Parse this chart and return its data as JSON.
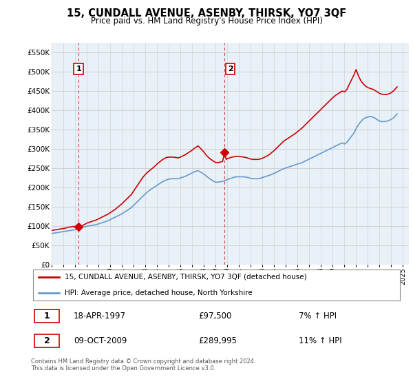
{
  "title": "15, CUNDALL AVENUE, ASENBY, THIRSK, YO7 3QF",
  "subtitle": "Price paid vs. HM Land Registry's House Price Index (HPI)",
  "ylim": [
    0,
    575000
  ],
  "yticks": [
    0,
    50000,
    100000,
    150000,
    200000,
    250000,
    300000,
    350000,
    400000,
    450000,
    500000,
    550000
  ],
  "ytick_labels": [
    "£0",
    "£50K",
    "£100K",
    "£150K",
    "£200K",
    "£250K",
    "£300K",
    "£350K",
    "£400K",
    "£450K",
    "£500K",
    "£550K"
  ],
  "sale1_date": 1997.3,
  "sale1_price": 97500,
  "sale1_label": "1",
  "sale1_text": "18-APR-1997",
  "sale1_amount": "£97,500",
  "sale1_hpi": "7% ↑ HPI",
  "sale2_date": 2009.77,
  "sale2_price": 289995,
  "sale2_label": "2",
  "sale2_text": "09-OCT-2009",
  "sale2_amount": "£289,995",
  "sale2_hpi": "11% ↑ HPI",
  "line_color_property": "#cc0000",
  "line_color_hpi": "#6699cc",
  "vline_color": "#cc4444",
  "grid_color": "#cccccc",
  "chart_bg": "#e8f0f8",
  "background_color": "#ffffff",
  "legend_label_property": "15, CUNDALL AVENUE, ASENBY, THIRSK, YO7 3QF (detached house)",
  "legend_label_hpi": "HPI: Average price, detached house, North Yorkshire",
  "footer": "Contains HM Land Registry data © Crown copyright and database right 2024.\nThis data is licensed under the Open Government Licence v3.0.",
  "xmin": 1995,
  "xmax": 2025.5,
  "hpi_years": [
    1995.0,
    1995.1,
    1995.2,
    1995.3,
    1995.4,
    1995.5,
    1995.6,
    1995.7,
    1995.8,
    1995.9,
    1996.0,
    1996.1,
    1996.2,
    1996.3,
    1996.4,
    1996.5,
    1996.6,
    1996.7,
    1996.8,
    1996.9,
    1997.0,
    1997.1,
    1997.2,
    1997.3,
    1997.4,
    1997.5,
    1997.6,
    1997.7,
    1997.8,
    1997.9,
    1998.0,
    1998.2,
    1998.4,
    1998.6,
    1998.8,
    1999.0,
    1999.2,
    1999.4,
    1999.6,
    1999.8,
    2000.0,
    2000.2,
    2000.4,
    2000.6,
    2000.8,
    2001.0,
    2001.2,
    2001.4,
    2001.6,
    2001.8,
    2002.0,
    2002.2,
    2002.4,
    2002.6,
    2002.8,
    2003.0,
    2003.2,
    2003.4,
    2003.6,
    2003.8,
    2004.0,
    2004.2,
    2004.4,
    2004.6,
    2004.8,
    2005.0,
    2005.2,
    2005.4,
    2005.6,
    2005.8,
    2006.0,
    2006.2,
    2006.4,
    2006.6,
    2006.8,
    2007.0,
    2007.2,
    2007.4,
    2007.5,
    2007.6,
    2007.8,
    2008.0,
    2008.2,
    2008.4,
    2008.6,
    2008.8,
    2009.0,
    2009.2,
    2009.4,
    2009.6,
    2009.8,
    2010.0,
    2010.2,
    2010.4,
    2010.6,
    2010.8,
    2011.0,
    2011.2,
    2011.4,
    2011.6,
    2011.8,
    2012.0,
    2012.2,
    2012.4,
    2012.6,
    2012.8,
    2013.0,
    2013.2,
    2013.4,
    2013.6,
    2013.8,
    2014.0,
    2014.2,
    2014.4,
    2014.6,
    2014.8,
    2015.0,
    2015.2,
    2015.4,
    2015.6,
    2015.8,
    2016.0,
    2016.2,
    2016.4,
    2016.6,
    2016.8,
    2017.0,
    2017.2,
    2017.4,
    2017.6,
    2017.8,
    2018.0,
    2018.2,
    2018.4,
    2018.6,
    2018.8,
    2019.0,
    2019.2,
    2019.4,
    2019.6,
    2019.8,
    2020.0,
    2020.2,
    2020.5,
    2020.8,
    2021.0,
    2021.2,
    2021.4,
    2021.6,
    2021.8,
    2022.0,
    2022.2,
    2022.4,
    2022.6,
    2022.8,
    2023.0,
    2023.2,
    2023.4,
    2023.6,
    2023.8,
    2024.0,
    2024.2,
    2024.5
  ],
  "hpi_values": [
    80000,
    80500,
    81000,
    81500,
    82000,
    82500,
    83000,
    83500,
    84000,
    84500,
    85000,
    85500,
    86000,
    86500,
    87000,
    87500,
    88000,
    88500,
    89000,
    89500,
    90000,
    91000,
    92000,
    93000,
    94000,
    95000,
    96000,
    97000,
    97500,
    98000,
    99000,
    100000,
    101000,
    102000,
    103000,
    105000,
    107000,
    109000,
    111000,
    113000,
    116000,
    119000,
    122000,
    125000,
    128000,
    131000,
    135000,
    139000,
    143000,
    147000,
    153000,
    159000,
    165000,
    171000,
    177000,
    183000,
    188000,
    193000,
    197000,
    201000,
    205000,
    209000,
    213000,
    216000,
    219000,
    221000,
    222000,
    222000,
    222000,
    222000,
    224000,
    226000,
    228000,
    231000,
    234000,
    237000,
    240000,
    242000,
    243000,
    241000,
    238000,
    234000,
    229000,
    224000,
    220000,
    216000,
    213000,
    213000,
    214000,
    215000,
    217000,
    220000,
    222000,
    224000,
    226000,
    227000,
    227000,
    227000,
    227000,
    226000,
    225000,
    223000,
    222000,
    222000,
    222000,
    223000,
    225000,
    227000,
    229000,
    231000,
    233000,
    236000,
    239000,
    242000,
    245000,
    248000,
    250000,
    252000,
    254000,
    256000,
    258000,
    260000,
    262000,
    264000,
    267000,
    270000,
    273000,
    276000,
    279000,
    282000,
    285000,
    288000,
    291000,
    294000,
    297000,
    300000,
    303000,
    306000,
    309000,
    312000,
    315000,
    312000,
    316000,
    328000,
    340000,
    352000,
    362000,
    370000,
    376000,
    380000,
    382000,
    383000,
    382000,
    379000,
    375000,
    371000,
    370000,
    370000,
    371000,
    373000,
    376000,
    380000,
    390000
  ],
  "prop_years": [
    1995.0,
    1995.1,
    1995.2,
    1995.3,
    1995.4,
    1995.5,
    1995.6,
    1995.7,
    1995.8,
    1995.9,
    1996.0,
    1996.1,
    1996.2,
    1996.3,
    1996.4,
    1996.5,
    1996.6,
    1996.7,
    1996.8,
    1996.9,
    1997.0,
    1997.1,
    1997.2,
    1997.3,
    1997.4,
    1997.5,
    1997.6,
    1997.7,
    1997.8,
    1997.9,
    1998.0,
    1998.2,
    1998.4,
    1998.6,
    1998.8,
    1999.0,
    1999.2,
    1999.4,
    1999.6,
    1999.8,
    2000.0,
    2000.2,
    2000.4,
    2000.6,
    2000.8,
    2001.0,
    2001.2,
    2001.4,
    2001.6,
    2001.8,
    2002.0,
    2002.2,
    2002.4,
    2002.6,
    2002.8,
    2003.0,
    2003.2,
    2003.4,
    2003.6,
    2003.8,
    2004.0,
    2004.2,
    2004.4,
    2004.6,
    2004.8,
    2005.0,
    2005.2,
    2005.4,
    2005.6,
    2005.8,
    2006.0,
    2006.2,
    2006.4,
    2006.6,
    2006.8,
    2007.0,
    2007.2,
    2007.4,
    2007.5,
    2007.6,
    2007.8,
    2008.0,
    2008.2,
    2008.4,
    2008.6,
    2008.8,
    2009.0,
    2009.2,
    2009.4,
    2009.6,
    2009.77,
    2009.9,
    2010.0,
    2010.2,
    2010.4,
    2010.6,
    2010.8,
    2011.0,
    2011.2,
    2011.4,
    2011.6,
    2011.8,
    2012.0,
    2012.2,
    2012.4,
    2012.6,
    2012.8,
    2013.0,
    2013.2,
    2013.4,
    2013.6,
    2013.8,
    2014.0,
    2014.2,
    2014.4,
    2014.6,
    2014.8,
    2015.0,
    2015.2,
    2015.4,
    2015.6,
    2015.8,
    2016.0,
    2016.2,
    2016.4,
    2016.6,
    2016.8,
    2017.0,
    2017.2,
    2017.4,
    2017.6,
    2017.8,
    2018.0,
    2018.2,
    2018.4,
    2018.6,
    2018.8,
    2019.0,
    2019.2,
    2019.4,
    2019.6,
    2019.8,
    2020.0,
    2020.2,
    2020.5,
    2020.8,
    2021.0,
    2021.2,
    2021.4,
    2021.6,
    2021.8,
    2022.0,
    2022.2,
    2022.4,
    2022.6,
    2022.8,
    2023.0,
    2023.2,
    2023.4,
    2023.6,
    2023.8,
    2024.0,
    2024.2,
    2024.5
  ],
  "prop_values": [
    88000,
    88500,
    89000,
    89500,
    90000,
    90500,
    91000,
    91500,
    92000,
    92500,
    93000,
    93500,
    94000,
    95000,
    96000,
    96500,
    97000,
    97500,
    97800,
    98000,
    98500,
    98700,
    98800,
    97500,
    98000,
    99000,
    100500,
    102000,
    103500,
    105000,
    107000,
    109000,
    111000,
    113000,
    115000,
    118000,
    121000,
    124000,
    127000,
    130000,
    134000,
    138000,
    142000,
    147000,
    152000,
    157000,
    163000,
    169000,
    175000,
    181000,
    190000,
    199000,
    208000,
    217000,
    226000,
    233000,
    239000,
    244000,
    249000,
    254000,
    260000,
    265000,
    270000,
    274000,
    277000,
    278000,
    278000,
    278000,
    277000,
    276000,
    278000,
    281000,
    284000,
    288000,
    292000,
    296000,
    301000,
    305000,
    307000,
    304000,
    298000,
    291000,
    283000,
    277000,
    272000,
    268000,
    264000,
    264000,
    265000,
    267000,
    289995,
    272000,
    274000,
    276000,
    278000,
    279000,
    280000,
    280000,
    279000,
    278000,
    277000,
    275000,
    273000,
    272000,
    272000,
    272000,
    273000,
    275000,
    278000,
    281000,
    285000,
    290000,
    295000,
    301000,
    307000,
    313000,
    319000,
    323000,
    327000,
    331000,
    335000,
    339000,
    344000,
    349000,
    354000,
    360000,
    366000,
    372000,
    378000,
    384000,
    390000,
    396000,
    402000,
    408000,
    414000,
    420000,
    426000,
    432000,
    437000,
    441000,
    445000,
    449000,
    447000,
    453000,
    472000,
    490000,
    505000,
    488000,
    476000,
    468000,
    462000,
    458000,
    456000,
    454000,
    451000,
    447000,
    443000,
    441000,
    440000,
    440000,
    442000,
    445000,
    450000,
    460000
  ]
}
